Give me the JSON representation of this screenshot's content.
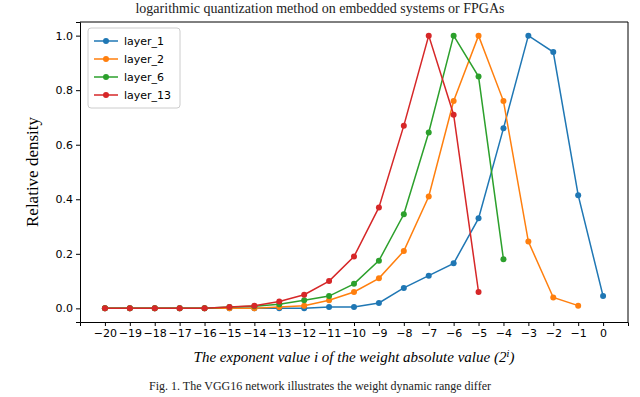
{
  "chart_data": {
    "type": "line",
    "header_text": "logarithmic quantization method on embedded systems or FPGAs",
    "caption": "Fig. 1. The VGG16 network illustrates the weight dynamic range differ",
    "x_label": "The exponent value i of the weight absolute value (2ⁱ)",
    "y_label": "Relative density",
    "x": [
      -20,
      -19,
      -18,
      -17,
      -16,
      -15,
      -14,
      -13,
      -12,
      -11,
      -10,
      -9,
      -8,
      -7,
      -6,
      -5,
      -4,
      -3,
      -2,
      -1,
      0
    ],
    "series": [
      {
        "name": "layer_1",
        "color": "#1f77b4",
        "values": [
          0,
          0,
          0,
          0,
          0,
          0,
          0,
          0,
          0,
          0.005,
          0.005,
          0.02,
          0.075,
          0.12,
          0.165,
          0.33,
          0.66,
          1.0,
          0.94,
          0.415,
          0.045
        ]
      },
      {
        "name": "layer_2",
        "color": "#ff7f0e",
        "values": [
          0,
          0,
          0,
          0,
          0,
          0,
          0,
          0.005,
          0.01,
          0.03,
          0.06,
          0.11,
          0.21,
          0.41,
          0.76,
          1.0,
          0.76,
          0.245,
          0.04,
          0.01,
          null
        ]
      },
      {
        "name": "layer_6",
        "color": "#2ca02c",
        "values": [
          0,
          0,
          0,
          0,
          0,
          0.005,
          0.008,
          0.015,
          0.03,
          0.045,
          0.09,
          0.175,
          0.345,
          0.645,
          1.0,
          0.85,
          0.18,
          null,
          null,
          null,
          null
        ]
      },
      {
        "name": "layer_13",
        "color": "#d62728",
        "values": [
          0,
          0,
          0,
          0,
          0,
          0.005,
          0.01,
          0.025,
          0.05,
          0.1,
          0.19,
          0.37,
          0.67,
          1.0,
          0.71,
          0.06,
          null,
          null,
          null,
          null,
          null
        ]
      }
    ],
    "xlim": [
      -21,
      1
    ],
    "ylim": [
      -0.05,
      1.05
    ],
    "xticks": [
      {
        "value": -20,
        "label": "−20"
      },
      {
        "value": -19,
        "label": "−19"
      },
      {
        "value": -18,
        "label": "−18"
      },
      {
        "value": -17,
        "label": "−17"
      },
      {
        "value": -16,
        "label": "−16"
      },
      {
        "value": -15,
        "label": "−15"
      },
      {
        "value": -14,
        "label": "−14"
      },
      {
        "value": -13,
        "label": "−13"
      },
      {
        "value": -12,
        "label": "−12"
      },
      {
        "value": -11,
        "label": "−11"
      },
      {
        "value": -10,
        "label": "−10"
      },
      {
        "value": -9,
        "label": "−9"
      },
      {
        "value": -8,
        "label": "−8"
      },
      {
        "value": -7,
        "label": "−7"
      },
      {
        "value": -6,
        "label": "−6"
      },
      {
        "value": -5,
        "label": "−5"
      },
      {
        "value": -4,
        "label": "−4"
      },
      {
        "value": -3,
        "label": "−3"
      },
      {
        "value": -2,
        "label": "−2"
      },
      {
        "value": -1,
        "label": "−1"
      },
      0
    ],
    "yticks": [
      {
        "value": 0,
        "label": "0.0"
      },
      {
        "value": 0.2,
        "label": "0.2"
      },
      {
        "value": 0.4,
        "label": "0.4"
      },
      {
        "value": 0.6,
        "label": "0.6"
      },
      {
        "value": 0.8,
        "label": "0.8"
      },
      {
        "value": 1,
        "label": "1.0"
      }
    ],
    "grid": false,
    "legend": "upper-left",
    "marker": "circle",
    "line_style": "solid"
  }
}
